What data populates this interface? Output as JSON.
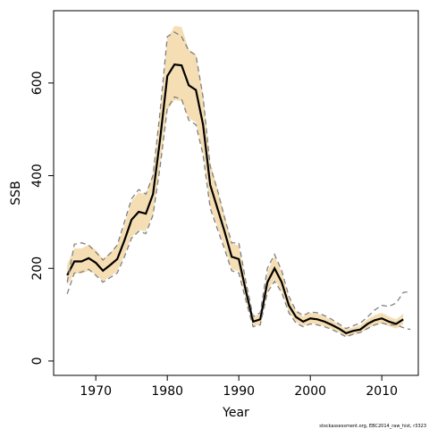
{
  "chart_data": {
    "type": "line",
    "x_label": "Year",
    "y_label": "SSB",
    "footnote": "stockassessment.org, EBC2014_raw_hist, r3323",
    "x": [
      1966,
      1967,
      1968,
      1969,
      1970,
      1971,
      1972,
      1973,
      1974,
      1975,
      1976,
      1977,
      1978,
      1979,
      1980,
      1981,
      1982,
      1983,
      1984,
      1985,
      1986,
      1987,
      1988,
      1989,
      1990,
      1991,
      1992,
      1993,
      1994,
      1995,
      1996,
      1997,
      1998,
      1999,
      2000,
      2001,
      2002,
      2003,
      2004,
      2005,
      2006,
      2007,
      2008,
      2009,
      2010,
      2011,
      2012,
      2013,
      2014
    ],
    "band": {
      "color": "#f5deb3",
      "upper": [
        209,
        243,
        243,
        251,
        240,
        220,
        234,
        249,
        294,
        345,
        364,
        359,
        407,
        542,
        695,
        723,
        721,
        672,
        661,
        576,
        429,
        373,
        316,
        254,
        249,
        170,
        96,
        102,
        192,
        226,
        192,
        136,
        107,
        96,
        104,
        102,
        96,
        88,
        79,
        68,
        73,
        77,
        90,
        99,
        104,
        96,
        90,
        102,
        null
      ],
      "lower": [
        163,
        189,
        189,
        195,
        187,
        172,
        182,
        194,
        229,
        268,
        283,
        280,
        317,
        422,
        541,
        563,
        561,
        524,
        515,
        449,
        334,
        290,
        246,
        198,
        194,
        132,
        75,
        79,
        150,
        176,
        150,
        106,
        84,
        75,
        81,
        79,
        75,
        69,
        62,
        53,
        57,
        60,
        70,
        77,
        81,
        75,
        70,
        79,
        null
      ]
    },
    "series": [
      {
        "name": "SSB",
        "color": "#000000",
        "style": "solid",
        "values": [
          185,
          215,
          215,
          222,
          212,
          195,
          207,
          220,
          260,
          305,
          322,
          318,
          360,
          480,
          615,
          640,
          638,
          595,
          585,
          510,
          380,
          330,
          280,
          225,
          220,
          150,
          85,
          90,
          170,
          200,
          170,
          120,
          95,
          85,
          92,
          90,
          85,
          78,
          70,
          60,
          65,
          68,
          80,
          88,
          92,
          85,
          80,
          90,
          null
        ]
      },
      {
        "name": "upper",
        "color": "#808080",
        "style": "dashed",
        "values": [
          170,
          252,
          255,
          250,
          235,
          218,
          232,
          250,
          300,
          350,
          370,
          360,
          400,
          540,
          700,
          710,
          700,
          670,
          660,
          570,
          420,
          370,
          310,
          255,
          255,
          170,
          96,
          104,
          200,
          230,
          195,
          140,
          108,
          98,
          106,
          104,
          98,
          90,
          80,
          70,
          76,
          82,
          95,
          110,
          120,
          118,
          125,
          148,
          150
        ]
      },
      {
        "name": "lower",
        "color": "#808080",
        "style": "dashed",
        "values": [
          145,
          190,
          192,
          198,
          185,
          170,
          180,
          190,
          225,
          265,
          280,
          275,
          315,
          420,
          545,
          570,
          565,
          520,
          510,
          445,
          330,
          285,
          242,
          195,
          190,
          130,
          74,
          78,
          148,
          172,
          148,
          104,
          82,
          74,
          80,
          78,
          74,
          68,
          61,
          52,
          58,
          62,
          70,
          78,
          82,
          78,
          78,
          72,
          68
        ]
      }
    ],
    "xlim": [
      1964.1,
      2015.1
    ],
    "ylim": [
      -31,
      756
    ],
    "xticks": [
      1970,
      1980,
      1990,
      2000,
      2010
    ],
    "yticks": [
      0,
      200,
      400,
      600
    ]
  }
}
